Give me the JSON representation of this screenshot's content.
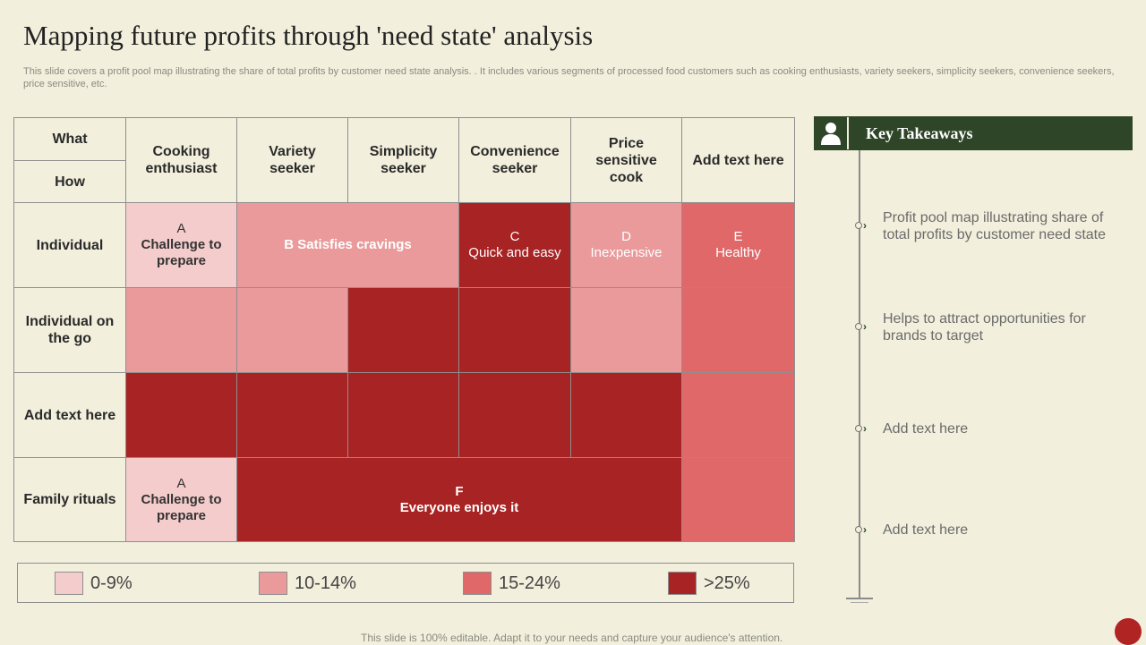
{
  "title": "Mapping future profits through 'need state' analysis",
  "subtitle": "This slide covers a profit pool map illustrating the share of total profits by customer need state analysis. . It includes various segments of processed food customers such as cooking enthusiasts, variety seekers, simplicity seekers, convenience seekers, price sensitive, etc.",
  "grid": {
    "corner_top": "What",
    "corner_bottom": "How",
    "columns": [
      "Cooking enthusiast",
      "Variety seeker",
      "Simplicity seeker",
      "Convenience seeker",
      "Price sensitive cook",
      "Add text here"
    ],
    "rows": [
      "Individual",
      "Individual on the go",
      "Add text here",
      "Family rituals"
    ],
    "blocks": {
      "a1_letter": "A",
      "a1_text": "Challenge to prepare",
      "b_text": "B Satisfies cravings",
      "c_letter": "C",
      "c_text": "Quick and easy",
      "d_letter": "D",
      "d_text": "Inexpensive",
      "e_letter": "E",
      "e_text": "Healthy",
      "a2_letter": "A",
      "a2_text": "Challenge to prepare",
      "f_letter": "F",
      "f_text": "Everyone enjoys it"
    }
  },
  "legend": [
    {
      "label": "0-9%",
      "color": "#f5cccc"
    },
    {
      "label": "10-14%",
      "color": "#ea9a9a"
    },
    {
      "label": "15-24%",
      "color": "#e06868"
    },
    {
      "label": ">25%",
      "color": "#a82323"
    }
  ],
  "key_takeaways": {
    "title": "Key Takeaways",
    "items": [
      "Profit pool map illustrating share of total profits by customer need state",
      "Helps to attract opportunities for brands to target",
      "Add text here",
      "Add text here"
    ]
  },
  "footer": "This slide is 100% editable. Adapt it to your needs and capture your audience's attention.",
  "colors": {
    "accent": "#2e4527",
    "background": "#f2efdc"
  }
}
